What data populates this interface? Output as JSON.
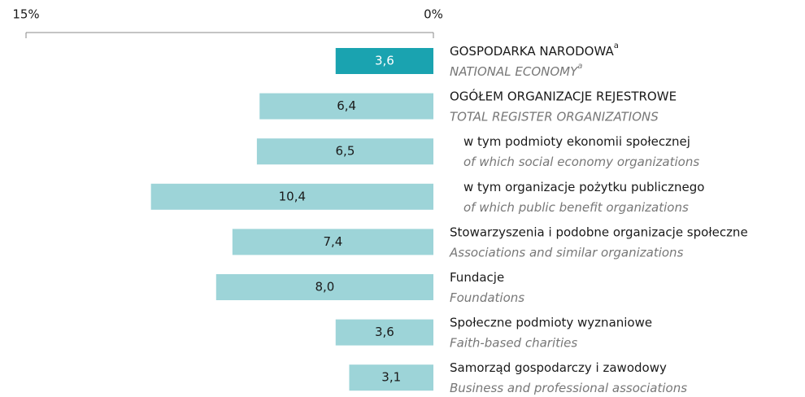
{
  "chart_data": {
    "type": "barh",
    "categories": [
      "GOSPODARKA NARODOWA",
      "OGÓŁEM ORGANIZACJE REJESTROWE",
      "w tym podmioty ekonomii społecznej",
      "w tym organizacje pożytku publicznego",
      "Stowarzyszenia i podobne organizacje społeczne",
      "Fundacje",
      "Społeczne podmioty wyznaniowe",
      "Samorząd gospodarczy i zawodowy"
    ],
    "categories_en": [
      "NATIONAL ECONOMY",
      "TOTAL REGISTER ORGANIZATIONS",
      "of which social economy organizations",
      "of which public benefit organizations",
      "Associations and similar organizations",
      "Foundations",
      "Faith-based charities",
      "Business and professional associations"
    ],
    "category_notes": [
      "a",
      null,
      null,
      null,
      null,
      null,
      null,
      null
    ],
    "category_levels": [
      0,
      0,
      1,
      1,
      0,
      0,
      0,
      0
    ],
    "values": [
      3.6,
      6.4,
      6.5,
      10.4,
      7.4,
      8.0,
      3.6,
      3.1
    ],
    "value_labels": [
      "3,6",
      "6,4",
      "6,5",
      "10,4",
      "7,4",
      "8,0",
      "3,6",
      "3,1"
    ],
    "colors": [
      "#1aa3b0",
      "#9dd4d8",
      "#9dd4d8",
      "#9dd4d8",
      "#9dd4d8",
      "#9dd4d8",
      "#9dd4d8",
      "#9dd4d8"
    ],
    "label_colors": [
      "#ffffff",
      "#1a1a1a",
      "#1a1a1a",
      "#1a1a1a",
      "#1a1a1a",
      "#1a1a1a",
      "#1a1a1a",
      "#1a1a1a"
    ],
    "xlim": [
      15,
      0
    ],
    "xticks": [
      {
        "value": 15,
        "label": "15%"
      },
      {
        "value": 0,
        "label": "0%"
      }
    ]
  }
}
